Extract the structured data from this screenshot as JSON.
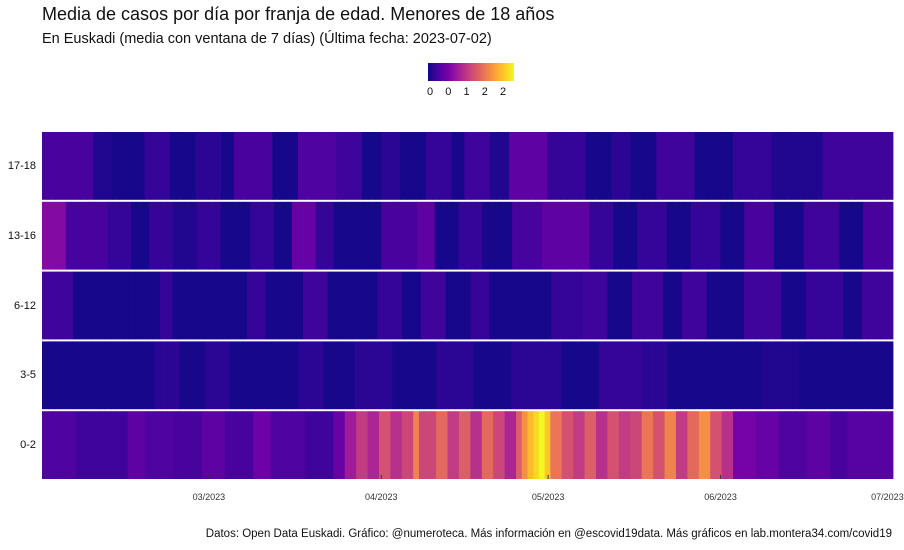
{
  "header": {
    "title": "Media de casos por día por franja de edad. Menores de 18 años",
    "subtitle": "En Euskadi (media con ventana de 7 días)  (Última fecha: 2023-07-02)"
  },
  "caption": "Datos: Open Data Euskadi. Gráfico: @numeroteca. Más información en @escovid19data.  Más gráficos en lab.montera34.com/covid19",
  "colors": {
    "palette": [
      "#0d0887",
      "#46039f",
      "#7201a8",
      "#9c179e",
      "#bd3786",
      "#d8576b",
      "#ed7953",
      "#fb9f3a",
      "#fdca26",
      "#f0f921"
    ]
  },
  "chart_data": {
    "type": "heatmap",
    "title": "Media de casos por día por franja de edad. Menores de 18 años",
    "start_date": "2023-01-30",
    "end_date": "2023-07-02",
    "legend": {
      "ticks": [
        "0",
        "0",
        "1",
        "2",
        "2"
      ],
      "min": 0,
      "max": 2.6
    },
    "y_categories": [
      "17-18",
      "13-16",
      "6-12",
      "3-5",
      "0-2"
    ],
    "x_ticks": [
      {
        "date": "2023-03-01",
        "label": "03/2023"
      },
      {
        "date": "2023-04-01",
        "label": "04/2023"
      },
      {
        "date": "2023-05-01",
        "label": "05/2023"
      },
      {
        "date": "2023-06-01",
        "label": "06/2023"
      },
      {
        "date": "2023-07-01",
        "label": "07/2023"
      }
    ],
    "series": [
      {
        "name": "17-18",
        "segments": [
          [
            8,
            0.3
          ],
          [
            3,
            0.1
          ],
          [
            5,
            0.05
          ],
          [
            4,
            0.2
          ],
          [
            4,
            0.05
          ],
          [
            4,
            0.15
          ],
          [
            2,
            0.05
          ],
          [
            6,
            0.3
          ],
          [
            4,
            0.05
          ],
          [
            6,
            0.35
          ],
          [
            4,
            0.25
          ],
          [
            3,
            0.05
          ],
          [
            3,
            0.15
          ],
          [
            4,
            0.05
          ],
          [
            4,
            0.2
          ],
          [
            2,
            0.05
          ],
          [
            4,
            0.25
          ],
          [
            3,
            0.1
          ],
          [
            6,
            0.45
          ],
          [
            6,
            0.2
          ],
          [
            4,
            0.05
          ],
          [
            3,
            0.15
          ],
          [
            4,
            0.05
          ],
          [
            6,
            0.25
          ],
          [
            6,
            0.05
          ],
          [
            6,
            0.2
          ],
          [
            8,
            0.1
          ],
          [
            11,
            0.25
          ]
        ]
      },
      {
        "name": "13-16",
        "segments": [
          [
            4,
            0.7
          ],
          [
            7,
            0.3
          ],
          [
            4,
            0.2
          ],
          [
            3,
            0.05
          ],
          [
            4,
            0.2
          ],
          [
            4,
            0.1
          ],
          [
            4,
            0.2
          ],
          [
            5,
            0.05
          ],
          [
            4,
            0.2
          ],
          [
            3,
            0.05
          ],
          [
            4,
            0.5
          ],
          [
            3,
            0.2
          ],
          [
            8,
            0.05
          ],
          [
            6,
            0.3
          ],
          [
            3,
            0.45
          ],
          [
            4,
            0.05
          ],
          [
            4,
            0.2
          ],
          [
            5,
            0.05
          ],
          [
            5,
            0.3
          ],
          [
            8,
            0.45
          ],
          [
            4,
            0.2
          ],
          [
            4,
            0.05
          ],
          [
            5,
            0.2
          ],
          [
            4,
            0.05
          ],
          [
            5,
            0.2
          ],
          [
            4,
            0.05
          ],
          [
            5,
            0.3
          ],
          [
            5,
            0.05
          ],
          [
            6,
            0.25
          ],
          [
            4,
            0.05
          ],
          [
            5,
            0.3
          ]
        ]
      },
      {
        "name": "6-12",
        "segments": [
          [
            5,
            0.25
          ],
          [
            14,
            0.05
          ],
          [
            2,
            0.2
          ],
          [
            12,
            0.05
          ],
          [
            3,
            0.2
          ],
          [
            6,
            0.05
          ],
          [
            4,
            0.25
          ],
          [
            8,
            0.05
          ],
          [
            4,
            0.2
          ],
          [
            3,
            0.05
          ],
          [
            4,
            0.25
          ],
          [
            4,
            0.05
          ],
          [
            3,
            0.2
          ],
          [
            10,
            0.05
          ],
          [
            5,
            0.2
          ],
          [
            4,
            0.25
          ],
          [
            4,
            0.05
          ],
          [
            5,
            0.25
          ],
          [
            3,
            0.05
          ],
          [
            4,
            0.25
          ],
          [
            6,
            0.05
          ],
          [
            6,
            0.25
          ],
          [
            4,
            0.05
          ],
          [
            6,
            0.2
          ],
          [
            3,
            0.05
          ],
          [
            5,
            0.25
          ]
        ]
      },
      {
        "name": "3-5",
        "segments": [
          [
            18,
            0.05
          ],
          [
            4,
            0.15
          ],
          [
            4,
            0.05
          ],
          [
            4,
            0.15
          ],
          [
            11,
            0.05
          ],
          [
            4,
            0.15
          ],
          [
            5,
            0.05
          ],
          [
            6,
            0.15
          ],
          [
            7,
            0.05
          ],
          [
            6,
            0.15
          ],
          [
            6,
            0.05
          ],
          [
            8,
            0.15
          ],
          [
            6,
            0.05
          ],
          [
            7,
            0.2
          ],
          [
            4,
            0.15
          ],
          [
            15,
            0.05
          ],
          [
            6,
            0.1
          ],
          [
            15,
            0.05
          ]
        ]
      },
      {
        "name": "0-2",
        "segments": [
          [
            6,
            0.35
          ],
          [
            9,
            0.25
          ],
          [
            3,
            0.45
          ],
          [
            5,
            0.35
          ],
          [
            5,
            0.3
          ],
          [
            4,
            0.45
          ],
          [
            5,
            0.3
          ],
          [
            3,
            0.55
          ],
          [
            6,
            0.35
          ],
          [
            5,
            0.25
          ],
          [
            2,
            0.5
          ],
          [
            2,
            0.9
          ],
          [
            2,
            1.2
          ],
          [
            2,
            1.0
          ],
          [
            2,
            1.4
          ],
          [
            2,
            1.1
          ],
          [
            2,
            1.3
          ],
          [
            1,
            1.8
          ],
          [
            3,
            1.3
          ],
          [
            2,
            1.6
          ],
          [
            2,
            1.2
          ],
          [
            2,
            1.5
          ],
          [
            2,
            1.1
          ],
          [
            2,
            1.6
          ],
          [
            2,
            1.3
          ],
          [
            2,
            1.0
          ],
          [
            1,
            1.5
          ],
          [
            1,
            1.9
          ],
          [
            1,
            2.2
          ],
          [
            1,
            2.4
          ],
          [
            1,
            2.6
          ],
          [
            1,
            2.3
          ],
          [
            2,
            1.7
          ],
          [
            2,
            1.4
          ],
          [
            2,
            1.2
          ],
          [
            2,
            1.5
          ],
          [
            2,
            1.1
          ],
          [
            2,
            1.4
          ],
          [
            2,
            1.2
          ],
          [
            2,
            1.3
          ],
          [
            2,
            1.7
          ],
          [
            2,
            1.4
          ],
          [
            2,
            1.8
          ],
          [
            2,
            1.2
          ],
          [
            2,
            1.6
          ],
          [
            2,
            1.9
          ],
          [
            2,
            1.4
          ],
          [
            2,
            1.1
          ],
          [
            4,
            0.6
          ],
          [
            4,
            0.5
          ],
          [
            5,
            0.35
          ],
          [
            4,
            0.45
          ],
          [
            3,
            0.3
          ],
          [
            8,
            0.4
          ]
        ]
      }
    ]
  }
}
